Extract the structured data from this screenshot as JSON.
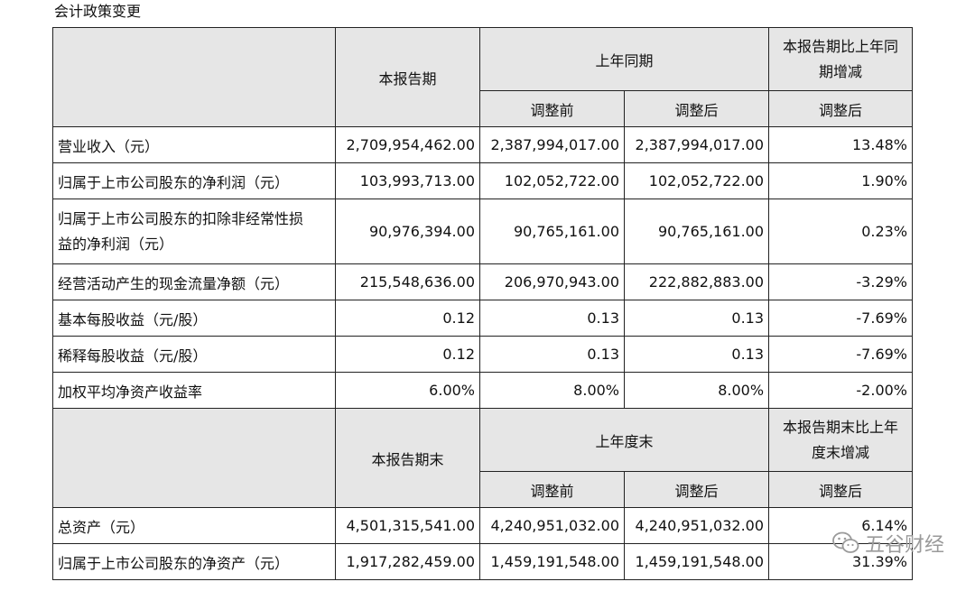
{
  "caption": "会计政策变更",
  "header1": {
    "current": "本报告期",
    "prior_group": "上年同期",
    "change_line1": "本报告期比上年同",
    "change_line2": "期增减",
    "before": "调整前",
    "after": "调整后",
    "change_sub": "调整后"
  },
  "rows1": [
    {
      "label": "营业收入（元）",
      "current": "2,709,954,462.00",
      "before": "2,387,994,017.00",
      "after": "2,387,994,017.00",
      "change": "13.48%"
    },
    {
      "label": "归属于上市公司股东的净利润（元）",
      "current": "103,993,713.00",
      "before": "102,052,722.00",
      "after": "102,052,722.00",
      "change": "1.90%"
    },
    {
      "label_line1": "归属于上市公司股东的扣除非经常性损",
      "label_line2": "益的净利润（元）",
      "current": "90,976,394.00",
      "before": "90,765,161.00",
      "after": "90,765,161.00",
      "change": "0.23%"
    },
    {
      "label": "经营活动产生的现金流量净额（元）",
      "current": "215,548,636.00",
      "before": "206,970,943.00",
      "after": "222,882,883.00",
      "change": "-3.29%"
    },
    {
      "label": "基本每股收益（元/股）",
      "current": "0.12",
      "before": "0.13",
      "after": "0.13",
      "change": "-7.69%"
    },
    {
      "label": "稀释每股收益（元/股）",
      "current": "0.12",
      "before": "0.13",
      "after": "0.13",
      "change": "-7.69%"
    },
    {
      "label": "加权平均净资产收益率",
      "current": "6.00%",
      "before": "8.00%",
      "after": "8.00%",
      "change": "-2.00%"
    }
  ],
  "header2": {
    "current": "本报告期末",
    "prior_group": "上年度末",
    "change_line1": "本报告期末比上年",
    "change_line2": "度末增减",
    "before": "调整前",
    "after": "调整后",
    "change_sub": "调整后"
  },
  "rows2": [
    {
      "label": "总资产（元）",
      "current": "4,501,315,541.00",
      "before": "4,240,951,032.00",
      "after": "4,240,951,032.00",
      "change": "6.14%"
    },
    {
      "label": "归属于上市公司股东的净资产（元）",
      "current": "1,917,282,459.00",
      "before": "1,459,191,548.00",
      "after": "1,459,191,548.00",
      "change": "31.39%"
    }
  ],
  "watermark": {
    "icon": "wechat-icon",
    "text": "五谷财经"
  }
}
